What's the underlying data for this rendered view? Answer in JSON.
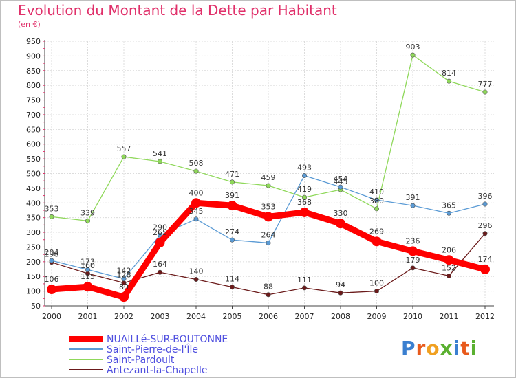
{
  "title": "Evolution du Montant de la Dette par Habitant",
  "subtitle": "(en €)",
  "logo_text": "Proxiti",
  "chart_data": {
    "type": "line",
    "title": "Evolution du Montant de la Dette par Habitant",
    "subtitle": "(en €)",
    "x": [
      "2000",
      "2001",
      "2002",
      "2003",
      "2004",
      "2005",
      "2006",
      "2007",
      "2008",
      "2009",
      "2010",
      "2011",
      "2012"
    ],
    "ylim": [
      50,
      950
    ],
    "yticks": [
      50,
      100,
      150,
      200,
      250,
      300,
      350,
      400,
      450,
      500,
      550,
      600,
      650,
      700,
      750,
      800,
      850,
      900,
      950
    ],
    "grid": true,
    "legend_position": "bottom-left",
    "series": [
      {
        "name": "NUAILLé-SUR-BOUTONNE",
        "color": "#ff0000",
        "values": [
          106,
          115,
          80,
          265,
          400,
          391,
          353,
          368,
          330,
          269,
          236,
          206,
          174
        ]
      },
      {
        "name": "Saint-Pierre-de-l'Île",
        "color": "#5b9bd5",
        "values": [
          204,
          173,
          142,
          290,
          345,
          274,
          264,
          493,
          454,
          410,
          391,
          365,
          396
        ]
      },
      {
        "name": "Saint-Pardoult",
        "color": "#8fd85a",
        "values": [
          353,
          339,
          557,
          541,
          508,
          471,
          459,
          419,
          445,
          380,
          903,
          814,
          777
        ]
      },
      {
        "name": "Antezant-la-Chapelle",
        "color": "#6b1a1a",
        "values": [
          198,
          160,
          128,
          164,
          140,
          114,
          88,
          111,
          94,
          100,
          179,
          152,
          296
        ]
      }
    ]
  }
}
